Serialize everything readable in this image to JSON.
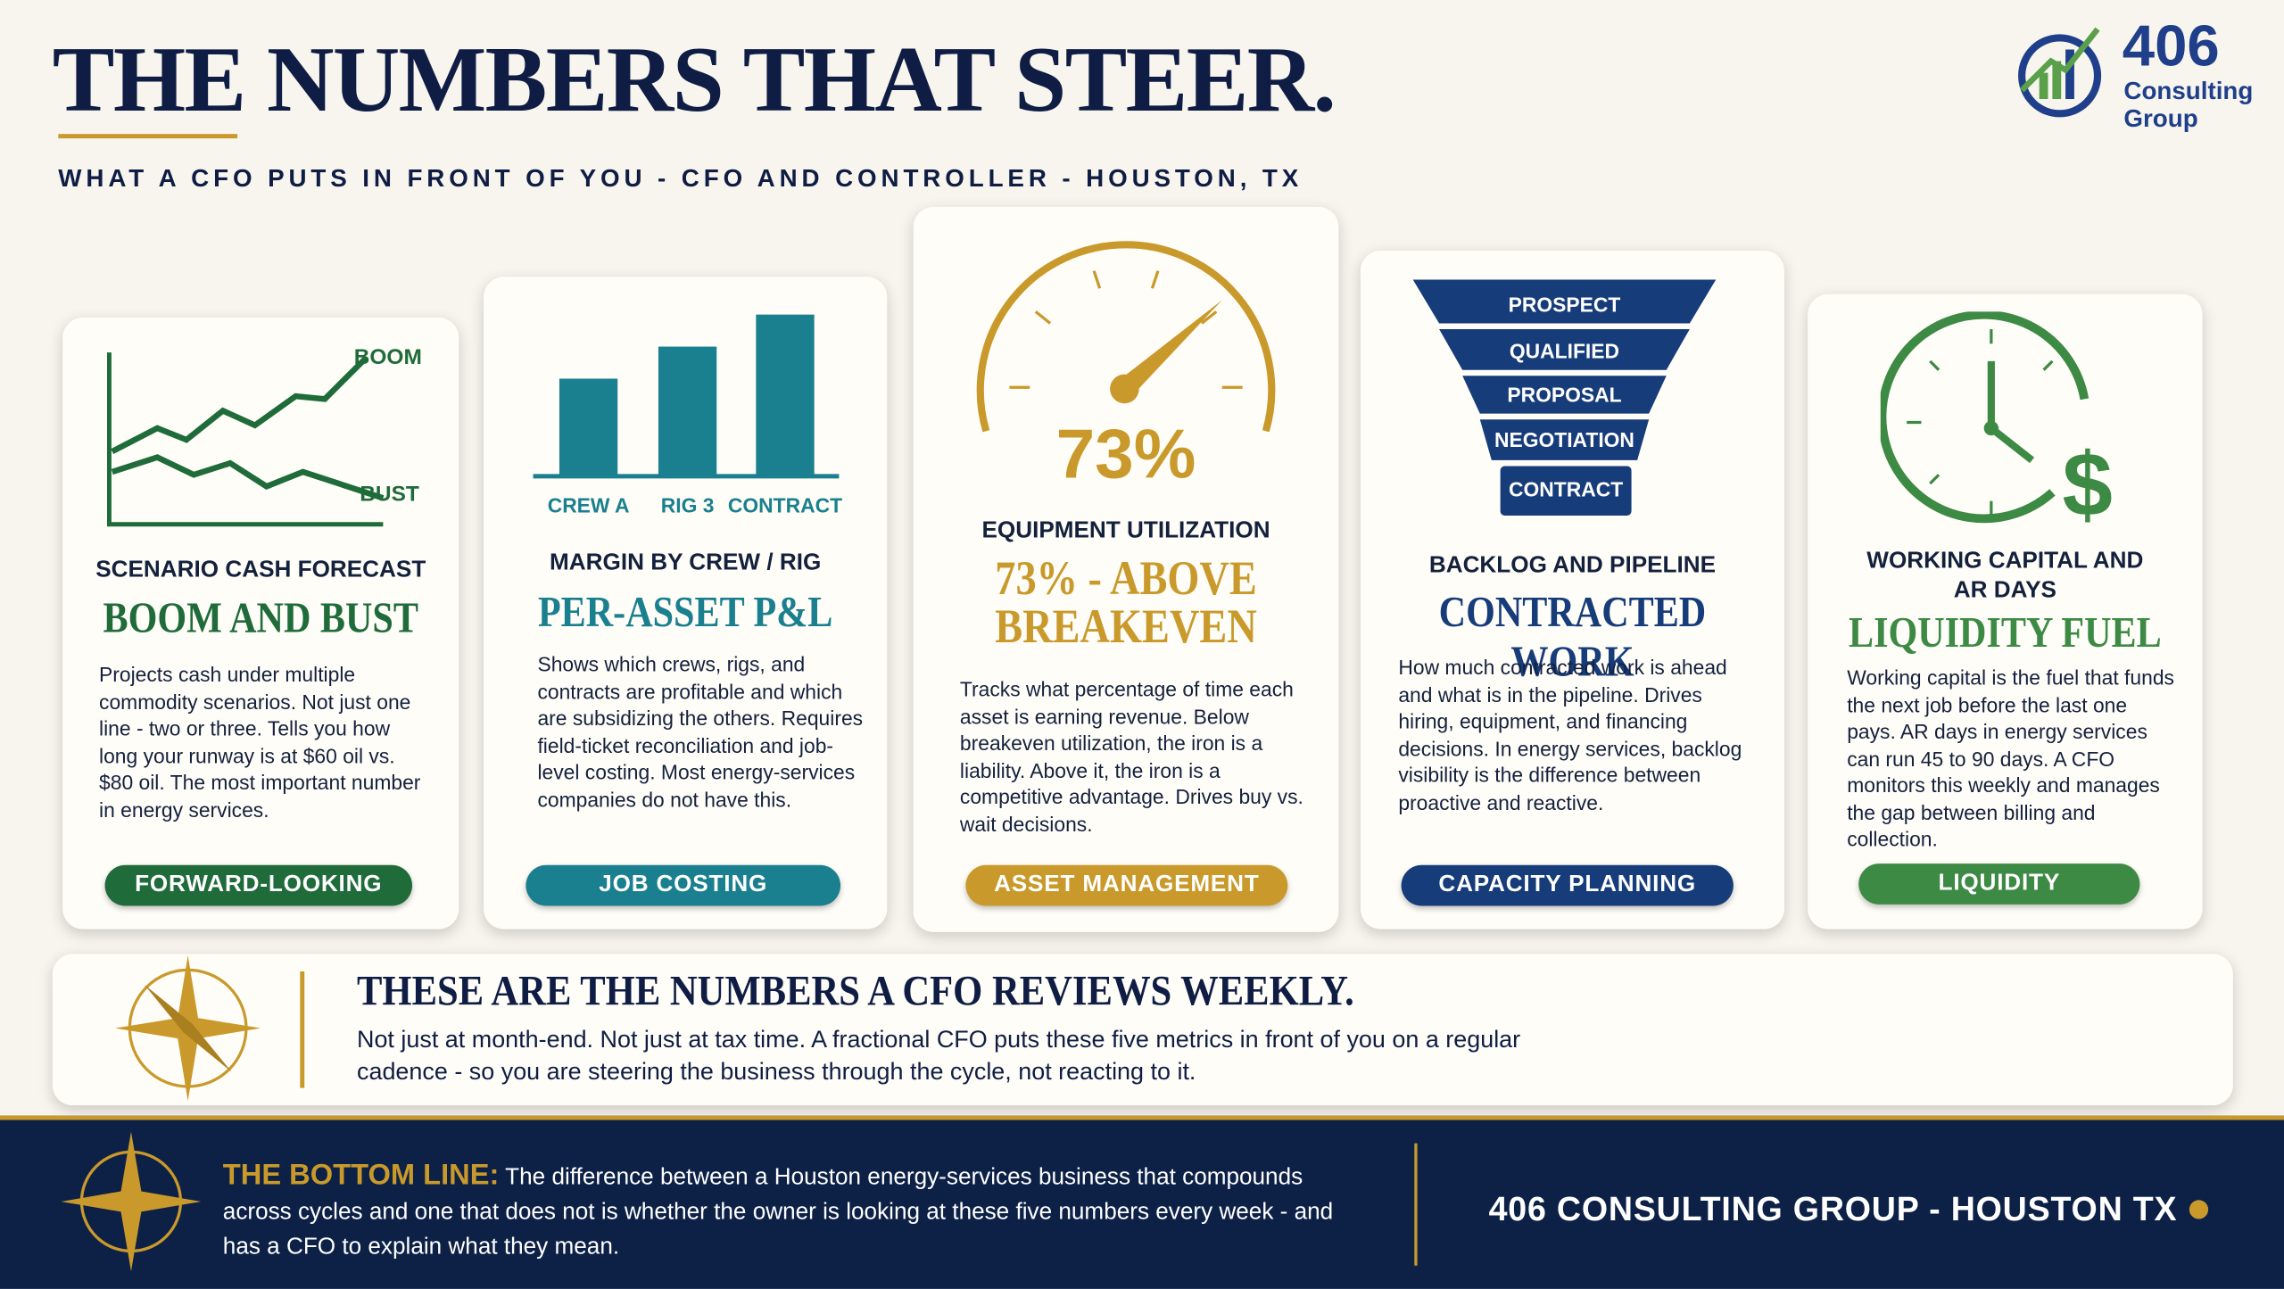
{
  "header": {
    "title": "THE NUMBERS THAT STEER.",
    "subtitle": "WHAT A CFO PUTS IN FRONT OF YOU - CFO AND CONTROLLER - HOUSTON, TX",
    "logo": {
      "number": "406",
      "name": "Consulting",
      "suffix": "Group"
    }
  },
  "cards": [
    {
      "icon_labels": [
        "BOOM",
        "BUST"
      ],
      "category": "SCENARIO CASH FORECAST",
      "headline": "BOOM AND BUST",
      "body": "Projects cash under multiple commodity scenarios. Not just one line - two or three. Tells you how long your runway is at $60 oil vs. $80 oil. The most important number in energy services.",
      "tag": "FORWARD-LOOKING"
    },
    {
      "icon_labels": [
        "CREW A",
        "RIG 3",
        "CONTRACT"
      ],
      "category": "MARGIN BY CREW / RIG",
      "headline": "PER-ASSET P&L",
      "body": "Shows which crews, rigs, and contracts are profitable and which are subsidizing the others. Requires field-ticket reconciliation and job-level costing. Most energy-services companies do not have this.",
      "tag": "JOB COSTING"
    },
    {
      "icon_labels": [
        "73%"
      ],
      "category": "EQUIPMENT UTILIZATION",
      "headline": "73% - ABOVE BREAKEVEN",
      "body": "Tracks what percentage of time each asset is earning revenue. Below breakeven utilization, the iron is a liability. Above it, the iron is a competitive advantage. Drives buy vs. wait decisions.",
      "tag": "ASSET MANAGEMENT"
    },
    {
      "icon_labels": [
        "PROSPECT",
        "QUALIFIED",
        "PROPOSAL",
        "NEGOTIATION",
        "CONTRACT"
      ],
      "category": "BACKLOG AND PIPELINE",
      "headline": "CONTRACTED WORK",
      "body": "How much contracted work is ahead and what is in the pipeline. Drives hiring, equipment, and financing decisions. In energy services, backlog visibility is the difference between proactive and reactive.",
      "tag": "CAPACITY PLANNING"
    },
    {
      "icon_labels": [],
      "category": "WORKING CAPITAL AND AR DAYS",
      "headline": "LIQUIDITY FUEL",
      "body": "Working capital is the fuel that funds the next job before the last one pays. AR days in energy services can run 45 to 90 days. A CFO monitors this weekly and manages the gap between billing and collection.",
      "tag": "LIQUIDITY"
    }
  ],
  "callout": {
    "title": "THESE ARE THE NUMBERS A CFO REVIEWS WEEKLY.",
    "body": "Not just at month-end. Not just at tax time. A fractional CFO puts these five metrics in front of you on a regular cadence - so you are steering the business through the cycle, not reacting to it."
  },
  "footer": {
    "label": "THE BOTTOM LINE:",
    "text": "The difference between a Houston energy-services business that compounds across cycles and one that does not is whether the owner is looking at these five numbers every week - and has a CFO to explain what they mean.",
    "brand": "406 CONSULTING GROUP - HOUSTON TX"
  }
}
